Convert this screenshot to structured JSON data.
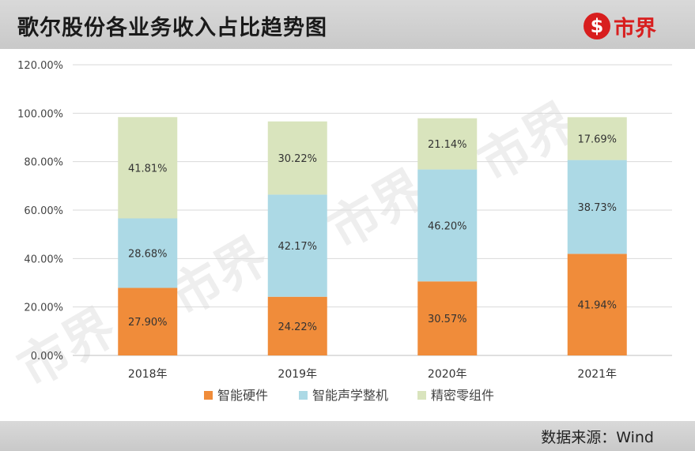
{
  "header": {
    "title": "歌尔股份各业务收入占比趋势图",
    "logo_glyph": "$",
    "logo_text": "市界"
  },
  "watermark": {
    "text": "市界"
  },
  "footer": {
    "source": "数据来源：Wind"
  },
  "chart_data": {
    "type": "bar",
    "stacked": true,
    "title": "歌尔股份各业务收入占比趋势图",
    "xlabel": "",
    "ylabel": "",
    "categories": [
      "2018年",
      "2019年",
      "2020年",
      "2021年"
    ],
    "y_ticks": [
      "0.00%",
      "20.00%",
      "40.00%",
      "60.00%",
      "80.00%",
      "100.00%",
      "120.00%"
    ],
    "ylim": [
      0,
      120
    ],
    "grid": true,
    "legend_position": "bottom",
    "series": [
      {
        "name": "智能硬件",
        "color": "#f08c3a",
        "values": [
          27.9,
          24.22,
          30.57,
          41.94
        ],
        "labels": [
          "27.90%",
          "24.22%",
          "30.57%",
          "41.94%"
        ]
      },
      {
        "name": "智能声学整机",
        "color": "#acd9e5",
        "values": [
          28.68,
          42.17,
          46.2,
          38.73
        ],
        "labels": [
          "28.68%",
          "42.17%",
          "46.20%",
          "38.73%"
        ]
      },
      {
        "name": "精密零组件",
        "color": "#d9e4bd",
        "values": [
          41.81,
          30.22,
          21.14,
          17.69
        ],
        "labels": [
          "41.81%",
          "30.22%",
          "21.14%",
          "17.69%"
        ]
      }
    ]
  }
}
